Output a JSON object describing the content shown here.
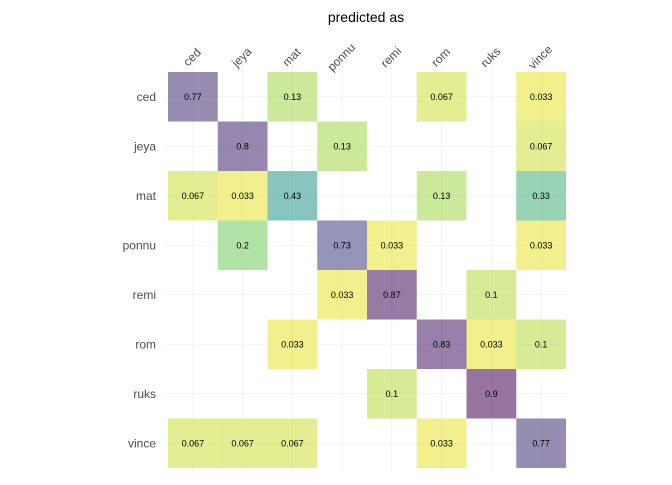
{
  "chart_data": {
    "type": "heatmap",
    "title": "predicted as",
    "x_categories": [
      "ced",
      "jeya",
      "mat",
      "ponnu",
      "remi",
      "rom",
      "ruks",
      "vince"
    ],
    "y_categories": [
      "ced",
      "jeya",
      "mat",
      "ponnu",
      "remi",
      "rom",
      "ruks",
      "vince"
    ],
    "value_range": [
      0,
      0.9
    ],
    "colormap": "viridis",
    "opacity": 0.55,
    "cells": [
      {
        "row": "ced",
        "col": "ced",
        "value": 0.77,
        "label": "0.77"
      },
      {
        "row": "ced",
        "col": "mat",
        "value": 0.13,
        "label": "0.13"
      },
      {
        "row": "ced",
        "col": "rom",
        "value": 0.067,
        "label": "0.067"
      },
      {
        "row": "ced",
        "col": "vince",
        "value": 0.033,
        "label": "0.033"
      },
      {
        "row": "jeya",
        "col": "jeya",
        "value": 0.8,
        "label": "0.8"
      },
      {
        "row": "jeya",
        "col": "ponnu",
        "value": 0.13,
        "label": "0.13"
      },
      {
        "row": "jeya",
        "col": "vince",
        "value": 0.067,
        "label": "0.067"
      },
      {
        "row": "mat",
        "col": "ced",
        "value": 0.067,
        "label": "0.067"
      },
      {
        "row": "mat",
        "col": "jeya",
        "value": 0.033,
        "label": "0.033"
      },
      {
        "row": "mat",
        "col": "mat",
        "value": 0.43,
        "label": "0.43"
      },
      {
        "row": "mat",
        "col": "rom",
        "value": 0.13,
        "label": "0.13"
      },
      {
        "row": "mat",
        "col": "vince",
        "value": 0.33,
        "label": "0.33"
      },
      {
        "row": "ponnu",
        "col": "jeya",
        "value": 0.2,
        "label": "0.2"
      },
      {
        "row": "ponnu",
        "col": "ponnu",
        "value": 0.73,
        "label": "0.73"
      },
      {
        "row": "ponnu",
        "col": "remi",
        "value": 0.033,
        "label": "0.033"
      },
      {
        "row": "ponnu",
        "col": "vince",
        "value": 0.033,
        "label": "0.033"
      },
      {
        "row": "remi",
        "col": "ponnu",
        "value": 0.033,
        "label": "0.033"
      },
      {
        "row": "remi",
        "col": "remi",
        "value": 0.87,
        "label": "0.87"
      },
      {
        "row": "remi",
        "col": "ruks",
        "value": 0.1,
        "label": "0.1"
      },
      {
        "row": "rom",
        "col": "mat",
        "value": 0.033,
        "label": "0.033"
      },
      {
        "row": "rom",
        "col": "rom",
        "value": 0.83,
        "label": "0.83"
      },
      {
        "row": "rom",
        "col": "ruks",
        "value": 0.033,
        "label": "0.033"
      },
      {
        "row": "rom",
        "col": "vince",
        "value": 0.1,
        "label": "0.1"
      },
      {
        "row": "ruks",
        "col": "remi",
        "value": 0.1,
        "label": "0.1"
      },
      {
        "row": "ruks",
        "col": "ruks",
        "value": 0.9,
        "label": "0.9"
      },
      {
        "row": "vince",
        "col": "ced",
        "value": 0.067,
        "label": "0.067"
      },
      {
        "row": "vince",
        "col": "jeya",
        "value": 0.067,
        "label": "0.067"
      },
      {
        "row": "vince",
        "col": "mat",
        "value": 0.067,
        "label": "0.067"
      },
      {
        "row": "vince",
        "col": "rom",
        "value": 0.033,
        "label": "0.033"
      },
      {
        "row": "vince",
        "col": "vince",
        "value": 0.77,
        "label": "0.77"
      }
    ],
    "grid": true,
    "legend": "none"
  }
}
